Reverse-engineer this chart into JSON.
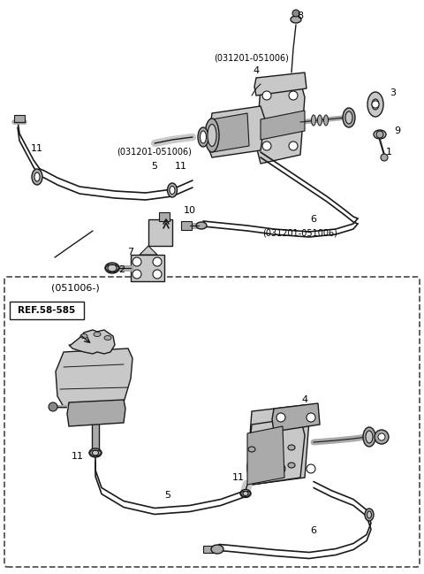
{
  "fig_width": 4.8,
  "fig_height": 6.49,
  "dpi": 100,
  "bg": "#ffffff",
  "lc": "#1a1a1a",
  "gray_light": "#c8c8c8",
  "gray_med": "#aaaaaa",
  "gray_dark": "#888888"
}
